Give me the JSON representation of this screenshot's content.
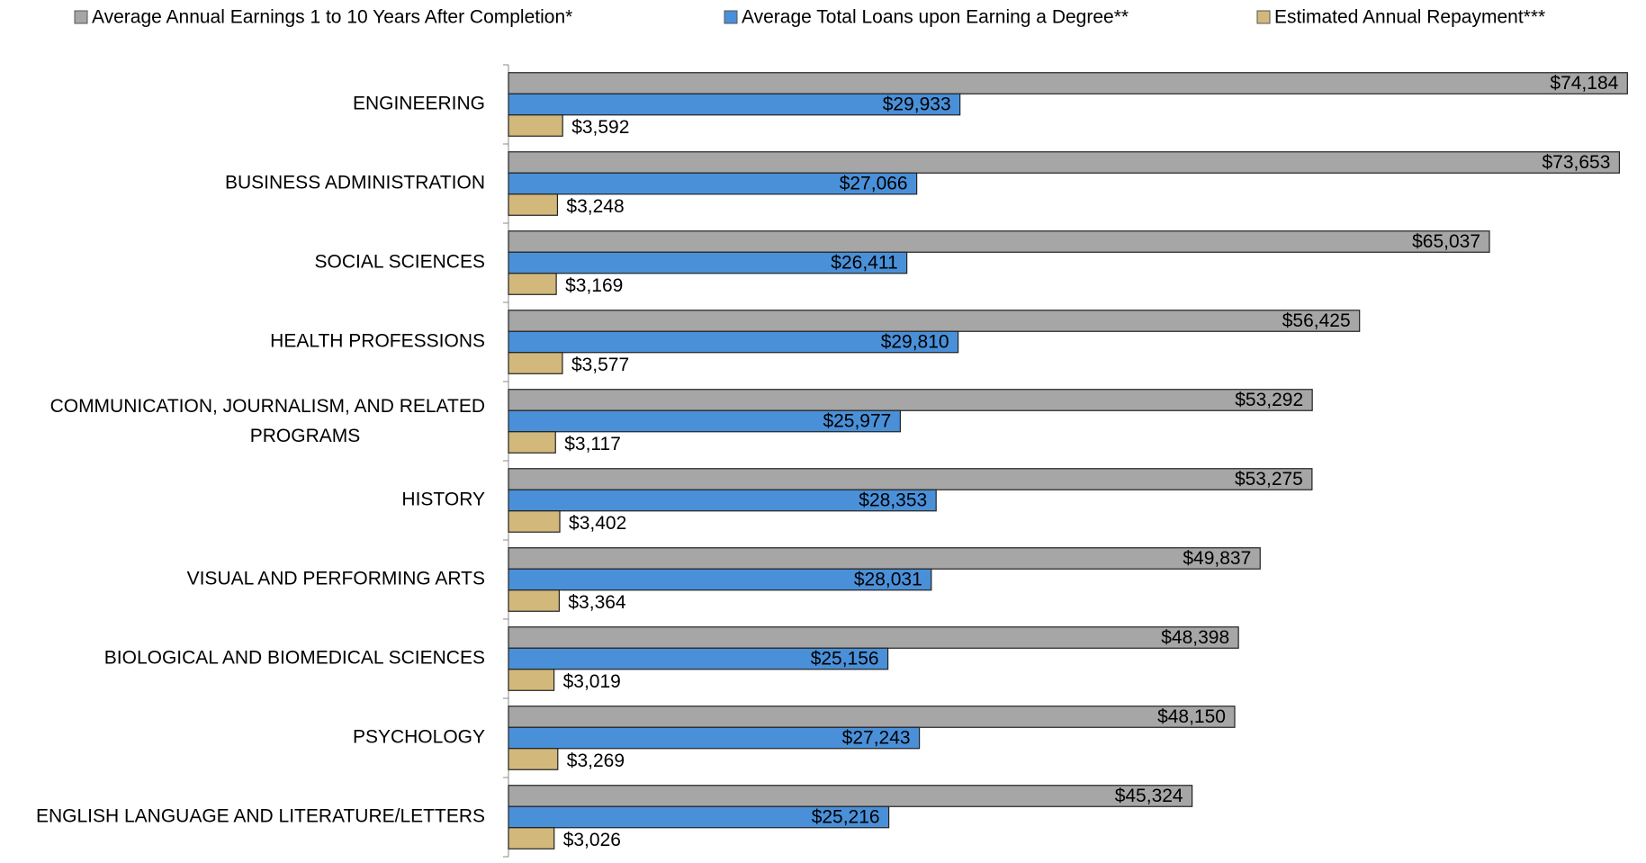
{
  "chart_data": {
    "type": "hbar",
    "categories": [
      "ENGINEERING",
      "BUSINESS ADMINISTRATION",
      "SOCIAL SCIENCES",
      "HEALTH PROFESSIONS",
      "COMMUNICATION, JOURNALISM, AND RELATED PROGRAMS",
      "HISTORY",
      "VISUAL AND PERFORMING ARTS",
      "BIOLOGICAL AND BIOMEDICAL SCIENCES",
      "PSYCHOLOGY",
      "ENGLISH LANGUAGE AND LITERATURE/LETTERS"
    ],
    "series": [
      {
        "name": "Average Annual Earnings 1 to 10 Years After Completion*",
        "color": "#a6a6a6",
        "values": [
          74184,
          73653,
          65037,
          56425,
          53292,
          53275,
          49837,
          48398,
          48150,
          45324
        ],
        "value_labels": [
          "$74,184",
          "$73,653",
          "$65,037",
          "$56,425",
          "$53,292",
          "$53,275",
          "$49,837",
          "$48,398",
          "$48,150",
          "$45,324"
        ]
      },
      {
        "name": "Average Total Loans upon Earning a Degree**",
        "color": "#4a90d9",
        "values": [
          29933,
          27066,
          26411,
          29810,
          25977,
          28353,
          28031,
          25156,
          27243,
          25216
        ],
        "value_labels": [
          "$29,933",
          "$27,066",
          "$26,411",
          "$29,810",
          "$25,977",
          "$28,353",
          "$28,031",
          "$25,156",
          "$27,243",
          "$25,216"
        ]
      },
      {
        "name": "Estimated Annual Repayment***",
        "color": "#d2b97b",
        "values": [
          3592,
          3248,
          3169,
          3577,
          3117,
          3402,
          3364,
          3019,
          3269,
          3026
        ],
        "value_labels": [
          "$3,592",
          "$3,248",
          "$3,169",
          "$3,577",
          "$3,117",
          "$3,402",
          "$3,364",
          "$3,019",
          "$3,269",
          "$3,026"
        ]
      }
    ],
    "xlim": [
      0,
      75000
    ],
    "legend": "top"
  }
}
